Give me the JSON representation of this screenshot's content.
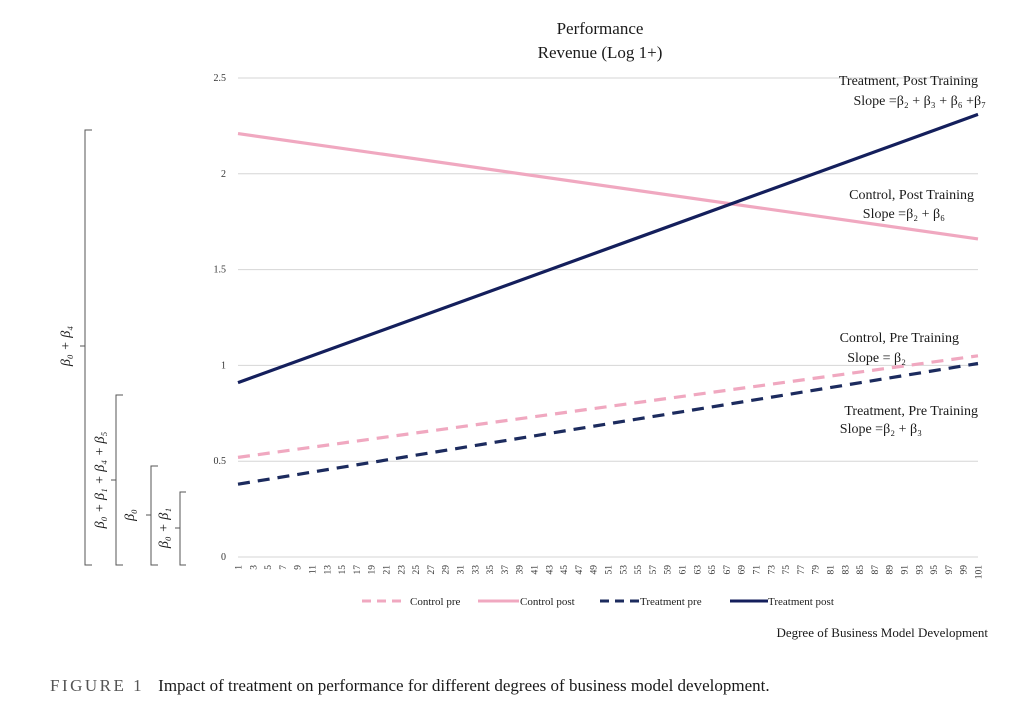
{
  "chart_data": {
    "type": "line",
    "title": "Performance",
    "subtitle": "Revenue (Log 1+)",
    "xlabel": "Degree of Business Model Development",
    "ylabel": "",
    "x_range": [
      1,
      101
    ],
    "ylim": [
      0,
      2.5
    ],
    "yticks": [
      "0",
      "0.5",
      "1",
      "1.5",
      "2",
      "2.5"
    ],
    "ytick_values": [
      0,
      0.5,
      1,
      1.5,
      2,
      2.5
    ],
    "grid": true,
    "legend_position": "bottom",
    "series": [
      {
        "name": "Control pre",
        "color": "#f0a8c0",
        "style": "dashed",
        "x": [
          1,
          101
        ],
        "y": [
          0.52,
          1.05
        ]
      },
      {
        "name": "Control post",
        "color": "#f0a8c0",
        "style": "solid",
        "x": [
          1,
          101
        ],
        "y": [
          2.21,
          1.66
        ]
      },
      {
        "name": "Treatment pre",
        "color": "#1c2b5e",
        "style": "dashed",
        "x": [
          1,
          101
        ],
        "y": [
          0.38,
          1.01
        ]
      },
      {
        "name": "Treatment post",
        "color": "#141f5c",
        "style": "solid",
        "x": [
          1,
          101
        ],
        "y": [
          0.91,
          2.31
        ]
      }
    ],
    "annotations": [
      {
        "line1": "Treatment, Post Training",
        "line2": "Slope =β₂ + β₃ + β₆ +β₇"
      },
      {
        "line1": "Control, Post Training",
        "line2": "Slope =β₂ + β₆"
      },
      {
        "line1": "Control, Pre Training",
        "line2": "Slope =  β₂"
      },
      {
        "line1": "Treatment, Pre Training",
        "line2": "Slope =β₂ + β₃"
      }
    ],
    "brackets": [
      {
        "label": "β₀ + β₄",
        "from": 0,
        "to": 2.21
      },
      {
        "label": "β₀ + β₁ + β₄ + β₅",
        "from": 0,
        "to": 0.91
      },
      {
        "label": "β₀",
        "from": 0,
        "to": 0.52
      },
      {
        "label": "β₀ + β₁",
        "from": 0,
        "to": 0.38
      }
    ]
  },
  "caption": {
    "label": "FIGURE 1",
    "text": "Impact of treatment on performance for different degrees of business model development."
  }
}
